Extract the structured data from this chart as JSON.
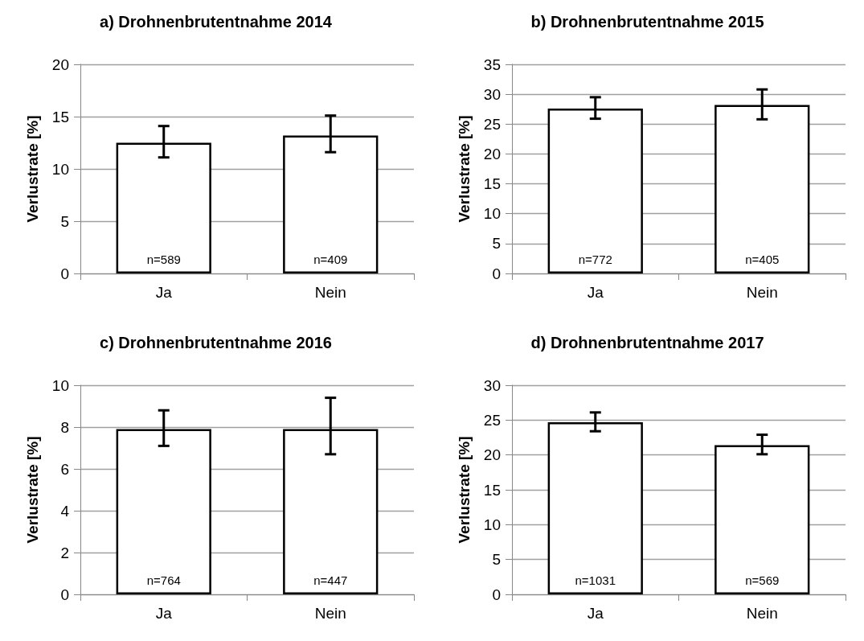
{
  "chart_data": [
    {
      "type": "bar",
      "title": "a) Drohnenbrutentnahme 2014",
      "ylabel": "Verlustrate [%]",
      "categories": [
        "Ja",
        "Nein"
      ],
      "values": [
        12.5,
        13.2
      ],
      "errors": [
        [
          11.1,
          14.1
        ],
        [
          11.6,
          15.1
        ]
      ],
      "annotations": [
        {
          "text": "n=589",
          "x": "Ja",
          "y": 0
        },
        {
          "text": "n=409",
          "x": "Nein",
          "y": 0
        }
      ],
      "color": "#ffffff",
      "ylim": [
        0,
        20
      ],
      "yticks": [
        0,
        5,
        10,
        15,
        20
      ],
      "grid": "y"
    },
    {
      "type": "bar",
      "title": "b) Drohnenbrutentnahme 2015",
      "ylabel": "Verlustrate [%]",
      "categories": [
        "Ja",
        "Nein"
      ],
      "values": [
        27.6,
        28.2
      ],
      "errors": [
        [
          25.9,
          29.5
        ],
        [
          25.8,
          30.8
        ]
      ],
      "annotations": [
        {
          "text": "n=772",
          "x": "Ja",
          "y": 0
        },
        {
          "text": "n=405",
          "x": "Nein",
          "y": 0
        }
      ],
      "color": "#ffffff",
      "ylim": [
        0,
        35
      ],
      "yticks": [
        0,
        5,
        10,
        15,
        20,
        25,
        30,
        35
      ],
      "grid": "y"
    },
    {
      "type": "bar",
      "title": "c) Drohnenbrutentnahme 2016",
      "ylabel": "Verlustrate [%]",
      "categories": [
        "Ja",
        "Nein"
      ],
      "values": [
        7.9,
        7.9
      ],
      "errors": [
        [
          7.1,
          8.8
        ],
        [
          6.7,
          9.4
        ]
      ],
      "annotations": [
        {
          "text": "n=764",
          "x": "Ja",
          "y": 0
        },
        {
          "text": "n=447",
          "x": "Nein",
          "y": 0
        }
      ],
      "color": "#ffffff",
      "ylim": [
        0,
        10
      ],
      "yticks": [
        0,
        2,
        4,
        6,
        8,
        10
      ],
      "grid": "y"
    },
    {
      "type": "bar",
      "title": "d) Drohnenbrutentnahme 2017",
      "ylabel": "Verlustrate [%]",
      "categories": [
        "Ja",
        "Nein"
      ],
      "values": [
        24.7,
        21.4
      ],
      "errors": [
        [
          23.4,
          26.1
        ],
        [
          20.1,
          22.9
        ]
      ],
      "annotations": [
        {
          "text": "n=1031",
          "x": "Ja",
          "y": 0
        },
        {
          "text": "n=569",
          "x": "Nein",
          "y": 0
        }
      ],
      "color": "#ffffff",
      "ylim": [
        0,
        30
      ],
      "yticks": [
        0,
        5,
        10,
        15,
        20,
        25,
        30
      ],
      "grid": "y"
    }
  ]
}
